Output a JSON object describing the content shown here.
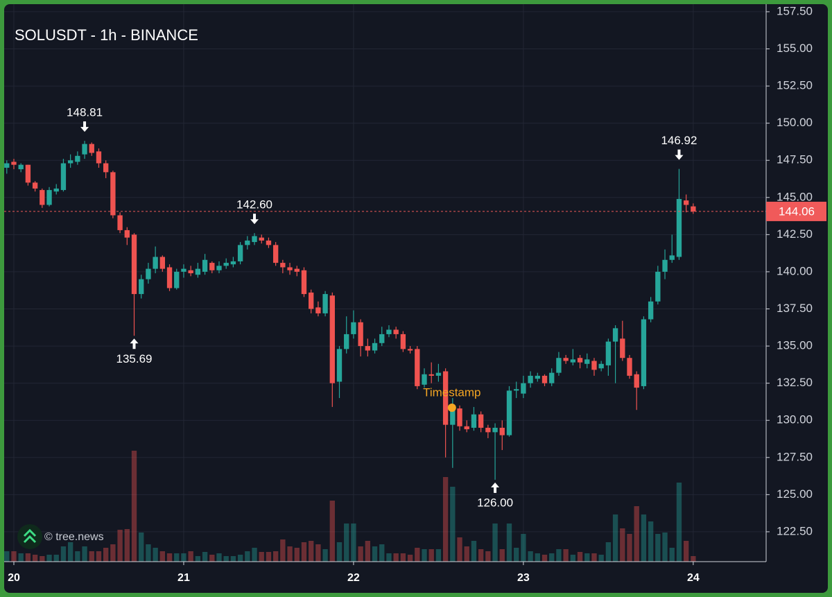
{
  "chart_data": {
    "type": "candlestick",
    "title": "SOLUSDT - 1h - BINANCE",
    "x": [
      -1,
      0,
      1,
      2,
      3,
      4,
      5,
      6,
      7,
      8,
      9,
      10,
      11,
      12,
      13,
      14,
      15,
      16,
      17,
      18,
      19,
      20,
      21,
      22,
      23,
      24,
      25,
      26,
      27,
      28,
      29,
      30,
      31,
      32,
      33,
      34,
      35,
      36,
      37,
      38,
      39,
      40,
      41,
      42,
      43,
      44,
      45,
      46,
      47,
      48,
      49,
      50,
      51,
      52,
      53,
      54,
      55,
      56,
      57,
      58,
      59,
      60,
      61,
      62,
      63,
      64,
      65,
      66,
      67,
      68,
      69,
      70,
      71,
      72,
      73,
      74,
      75,
      76,
      77,
      78,
      79,
      80,
      81,
      82,
      83,
      84,
      85,
      86,
      87,
      88,
      89,
      90,
      91,
      92,
      93,
      94,
      95,
      96
    ],
    "open": [
      147.0,
      147.4,
      146.9,
      147.2,
      146.0,
      145.5,
      144.5,
      145.4,
      145.5,
      147.3,
      147.4,
      147.9,
      148.6,
      148.1,
      147.3,
      146.7,
      143.8,
      142.8,
      142.5,
      138.5,
      139.5,
      140.2,
      141.0,
      140.3,
      138.9,
      140.0,
      140.1,
      139.8,
      140.0,
      140.6,
      140.1,
      140.4,
      140.5,
      140.7,
      141.8,
      142.0,
      142.3,
      142.1,
      141.8,
      140.6,
      140.3,
      140.2,
      140.1,
      138.6,
      137.6,
      137.2,
      138.4,
      132.6,
      134.8,
      135.8,
      136.6,
      135.0,
      134.7,
      135.2,
      135.8,
      136.1,
      135.8,
      134.8,
      134.8,
      132.4,
      133.1,
      133.0,
      133.3,
      129.7,
      130.8,
      129.6,
      129.5,
      130.4,
      129.5,
      129.2,
      129.5,
      129.0,
      132.0,
      131.8,
      132.5,
      132.8,
      133.0,
      132.5,
      133.2,
      134.2,
      133.9,
      134.2,
      133.8,
      134.0,
      133.5,
      133.7,
      135.3,
      135.5,
      134.2,
      133.1,
      132.3,
      136.8,
      138.0,
      140.0,
      140.8,
      141.0,
      144.8,
      144.4
    ],
    "high": [
      147.5,
      147.6,
      147.3,
      147.2,
      146.1,
      145.6,
      145.7,
      145.9,
      147.6,
      147.9,
      148.1,
      148.81,
      148.7,
      148.3,
      147.5,
      146.8,
      144.0,
      143.0,
      142.6,
      139.8,
      140.6,
      141.7,
      141.1,
      140.5,
      140.2,
      140.5,
      140.4,
      140.6,
      141.2,
      140.7,
      140.7,
      140.9,
      141.0,
      142.0,
      142.4,
      142.6,
      142.5,
      142.3,
      142.0,
      140.8,
      140.6,
      140.4,
      140.3,
      138.8,
      138.0,
      138.7,
      138.6,
      135.0,
      137.0,
      137.4,
      136.8,
      135.5,
      135.5,
      136.3,
      136.4,
      136.3,
      136.0,
      135.0,
      135.0,
      133.5,
      133.9,
      133.8,
      133.5,
      131.5,
      131.0,
      130.0,
      130.9,
      130.6,
      129.7,
      129.8,
      130.0,
      132.3,
      132.6,
      133.0,
      133.3,
      133.2,
      133.1,
      133.5,
      134.6,
      134.4,
      134.8,
      134.4,
      134.5,
      134.2,
      134.0,
      135.5,
      136.4,
      136.7,
      134.4,
      133.3,
      137.0,
      138.3,
      140.4,
      141.5,
      142.5,
      146.92,
      145.2,
      144.6
    ],
    "low": [
      146.6,
      146.9,
      146.7,
      145.8,
      145.4,
      144.3,
      144.4,
      145.2,
      145.4,
      147.0,
      147.2,
      147.6,
      147.8,
      147.0,
      146.3,
      143.6,
      142.6,
      141.8,
      135.69,
      138.2,
      139.2,
      139.9,
      140.0,
      138.7,
      138.8,
      139.6,
      139.7,
      139.6,
      139.8,
      139.9,
      139.9,
      140.2,
      140.3,
      140.5,
      141.5,
      141.8,
      141.9,
      141.6,
      140.4,
      139.9,
      139.8,
      139.7,
      138.3,
      137.2,
      137.0,
      137.0,
      130.9,
      131.5,
      134.5,
      135.5,
      134.3,
      134.3,
      134.5,
      135.0,
      135.6,
      135.5,
      134.6,
      134.5,
      132.1,
      132.2,
      132.5,
      132.6,
      127.5,
      126.8,
      129.3,
      129.2,
      129.3,
      129.2,
      128.8,
      126,
      128.0,
      128.9,
      131.5,
      131.5,
      132.2,
      132.6,
      132.3,
      132.3,
      133.0,
      133.8,
      133.7,
      133.5,
      133.5,
      133.0,
      133.3,
      133.0,
      132.5,
      134.0,
      132.8,
      130.7,
      132.1,
      136.6,
      137.8,
      139.5,
      140.6,
      140.8,
      144.0,
      143.9
    ],
    "close": [
      147.3,
      147.2,
      147.2,
      146.0,
      145.6,
      144.5,
      145.5,
      145.6,
      147.3,
      147.5,
      147.8,
      148.6,
      148.0,
      147.3,
      146.7,
      143.8,
      142.8,
      142.3,
      138.5,
      139.5,
      140.2,
      141.0,
      140.2,
      138.9,
      140.0,
      140.2,
      139.9,
      140.2,
      140.8,
      140.1,
      140.4,
      140.6,
      140.7,
      141.8,
      142.1,
      142.4,
      142.1,
      141.8,
      140.6,
      140.3,
      140.1,
      140.0,
      138.5,
      137.5,
      137.2,
      138.5,
      132.5,
      134.8,
      135.8,
      136.6,
      135.0,
      134.7,
      135.2,
      135.8,
      136.1,
      135.8,
      134.8,
      134.7,
      132.3,
      133.1,
      133.0,
      133.2,
      129.7,
      130.8,
      129.6,
      129.4,
      130.4,
      129.5,
      129.2,
      129.5,
      129.0,
      132.0,
      132.1,
      132.5,
      133.0,
      133.0,
      132.5,
      133.2,
      134.2,
      134.0,
      134.1,
      133.9,
      134.1,
      133.4,
      133.8,
      135.3,
      136.2,
      134.2,
      133.0,
      132.2,
      136.8,
      138.0,
      140.0,
      140.8,
      141.1,
      144.9,
      144.5,
      144.06
    ],
    "volume": [
      15,
      15,
      12,
      12,
      10,
      8,
      10,
      10,
      22,
      28,
      15,
      22,
      15,
      15,
      20,
      25,
      46,
      47,
      160,
      42,
      25,
      20,
      15,
      12,
      12,
      12,
      15,
      8,
      14,
      10,
      12,
      8,
      8,
      10,
      15,
      20,
      14,
      14,
      15,
      32,
      22,
      20,
      28,
      30,
      25,
      18,
      88,
      28,
      55,
      55,
      22,
      30,
      22,
      25,
      12,
      12,
      12,
      10,
      20,
      18,
      18,
      18,
      122,
      108,
      35,
      22,
      30,
      18,
      15,
      55,
      18,
      55,
      20,
      40,
      15,
      12,
      10,
      12,
      18,
      18,
      10,
      14,
      12,
      12,
      10,
      28,
      68,
      48,
      40,
      80,
      68,
      58,
      40,
      42,
      20,
      114,
      30,
      8
    ],
    "up_color": "#26a69a",
    "down_color": "#ef5350",
    "xlim": [
      -1.37,
      106.3
    ],
    "xticks": [
      {
        "value": 0,
        "label": "20"
      },
      {
        "value": 24,
        "label": "21"
      },
      {
        "value": 48,
        "label": "22"
      },
      {
        "value": 72,
        "label": "23"
      },
      {
        "value": 96,
        "label": "24"
      }
    ],
    "ylim": [
      120.49,
      158.01
    ],
    "yticks": [
      {
        "value": 122.5,
        "label": "122.50"
      },
      {
        "value": 125,
        "label": "125.00"
      },
      {
        "value": 127.5,
        "label": "127.50"
      },
      {
        "value": 130,
        "label": "130.00"
      },
      {
        "value": 132.5,
        "label": "132.50"
      },
      {
        "value": 135,
        "label": "135.00"
      },
      {
        "value": 137.5,
        "label": "137.50"
      },
      {
        "value": 140,
        "label": "140.00"
      },
      {
        "value": 142.5,
        "label": "142.50"
      },
      {
        "value": 145,
        "label": "145.00"
      },
      {
        "value": 147.5,
        "label": "147.50"
      },
      {
        "value": 150,
        "label": "150.00"
      },
      {
        "value": 152.5,
        "label": "152.50"
      },
      {
        "value": 155,
        "label": "155.00"
      },
      {
        "value": 157.5,
        "label": "157.50"
      }
    ],
    "grid": true,
    "last_price": 144.06,
    "last_price_color": "#f05a5a",
    "annotations": [
      {
        "x": 10,
        "value": 148.81,
        "side": "above"
      },
      {
        "x": 17,
        "value": 135.69,
        "side": "below"
      },
      {
        "x": 34,
        "value": 142.6,
        "label": "142.60",
        "side": "above"
      },
      {
        "x": 68,
        "value": 126,
        "label": "126.00",
        "side": "below"
      },
      {
        "x": 94,
        "value": 146.92,
        "side": "above"
      }
    ],
    "marker": {
      "text": "Timestamp",
      "x": 61.9,
      "value": 130.85,
      "color": "#f5a623"
    },
    "watermark": "© tree.news"
  }
}
